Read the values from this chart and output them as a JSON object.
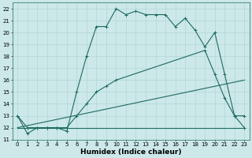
{
  "xlabel": "Humidex (Indice chaleur)",
  "xlim": [
    -0.5,
    23.5
  ],
  "ylim": [
    11,
    22.5
  ],
  "xticks": [
    0,
    1,
    2,
    3,
    4,
    5,
    6,
    7,
    8,
    9,
    10,
    11,
    12,
    13,
    14,
    15,
    16,
    17,
    18,
    19,
    20,
    21,
    22,
    23
  ],
  "yticks": [
    11,
    12,
    13,
    14,
    15,
    16,
    17,
    18,
    19,
    20,
    21,
    22
  ],
  "bg_color": "#cce8e8",
  "line_color": "#1e6b5e",
  "curves": [
    {
      "x": [
        0,
        1,
        2,
        3,
        4,
        5,
        6,
        7,
        8,
        9,
        10,
        11,
        12,
        13,
        14,
        15,
        16,
        17,
        18,
        19,
        20,
        21,
        22,
        23
      ],
      "y": [
        13,
        11.5,
        12,
        12,
        12,
        11.7,
        15,
        18,
        20.5,
        20.5,
        22,
        21.5,
        21.8,
        21.5,
        21.5,
        21.5,
        20.5,
        21.2,
        20.2,
        18.8,
        20,
        16.5,
        13,
        12
      ],
      "marker": true
    },
    {
      "x": [
        0,
        23
      ],
      "y": [
        12,
        12
      ],
      "marker": false
    },
    {
      "x": [
        0,
        1,
        2,
        3,
        4,
        5,
        6,
        7,
        8,
        9,
        10,
        19,
        20,
        21,
        22,
        23
      ],
      "y": [
        13,
        12,
        12,
        12,
        12,
        12,
        13,
        14,
        15,
        15.5,
        16,
        18.5,
        16.5,
        14.5,
        13,
        13
      ],
      "marker": true
    },
    {
      "x": [
        0,
        23
      ],
      "y": [
        12,
        16
      ],
      "marker": false
    }
  ],
  "grid_color": "#aad4d0",
  "tick_fontsize": 5.0,
  "label_fontsize": 6.5
}
